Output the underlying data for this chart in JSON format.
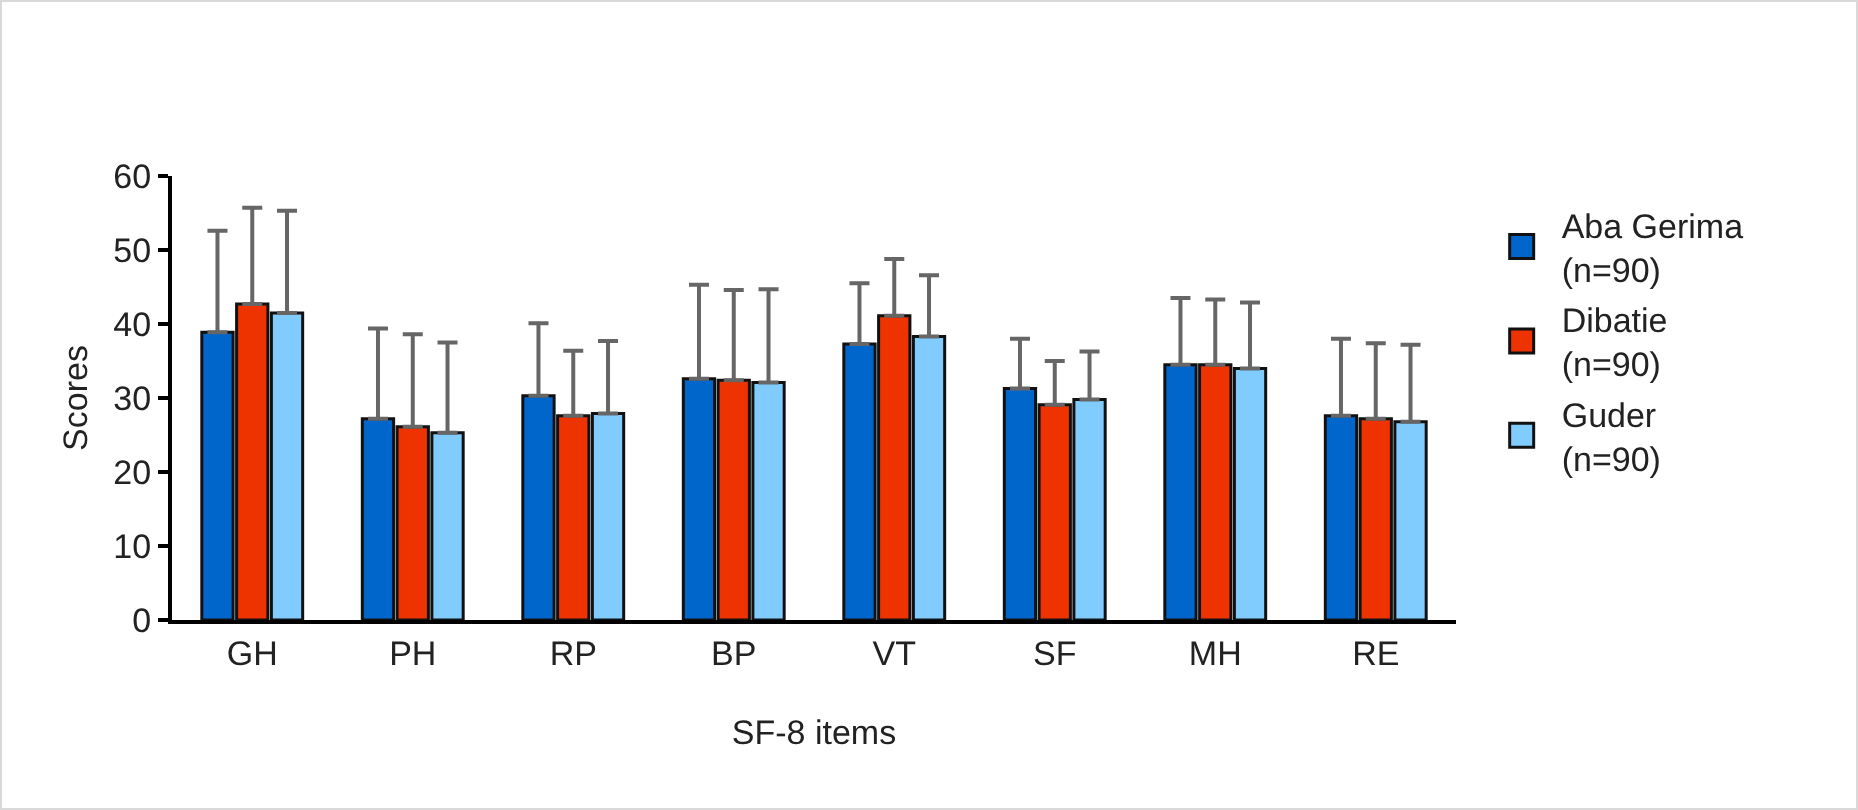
{
  "chart_data": {
    "type": "bar",
    "xlabel": "SF-8 items",
    "ylabel": "Scores",
    "categories": [
      "GH",
      "PH",
      "RP",
      "BP",
      "VT",
      "SF",
      "MH",
      "RE"
    ],
    "series": [
      {
        "name": "Aba Gerima (n=90)",
        "color": "#0066cc",
        "values": [
          38.9,
          27.2,
          30.3,
          32.6,
          37.3,
          31.3,
          34.5,
          27.6
        ],
        "errors": [
          [
            38.9,
            52.6
          ],
          [
            27.2,
            39.4
          ],
          [
            30.3,
            40.1
          ],
          [
            32.6,
            45.3
          ],
          [
            37.3,
            45.5
          ],
          [
            31.3,
            38.0
          ],
          [
            34.5,
            43.5
          ],
          [
            27.6,
            38.0
          ]
        ]
      },
      {
        "name": "Dibatie (n=90)",
        "color": "#ee3300",
        "values": [
          42.7,
          26.1,
          27.6,
          32.4,
          41.1,
          29.1,
          34.5,
          27.2
        ],
        "errors": [
          [
            42.7,
            55.7
          ],
          [
            26.1,
            38.6
          ],
          [
            27.6,
            36.4
          ],
          [
            32.4,
            44.6
          ],
          [
            41.1,
            48.8
          ],
          [
            29.1,
            35.0
          ],
          [
            34.5,
            43.3
          ],
          [
            27.2,
            37.4
          ]
        ]
      },
      {
        "name": "Guder (n=90)",
        "color": "#80ccff",
        "values": [
          41.5,
          25.3,
          27.9,
          32.1,
          38.3,
          29.8,
          34.0,
          26.8
        ],
        "errors": [
          [
            41.5,
            55.3
          ],
          [
            25.3,
            37.5
          ],
          [
            27.9,
            37.7
          ],
          [
            32.1,
            44.7
          ],
          [
            38.3,
            46.6
          ],
          [
            29.8,
            36.3
          ],
          [
            34.0,
            42.9
          ],
          [
            26.8,
            37.2
          ]
        ]
      }
    ],
    "ylim": [
      0,
      60
    ],
    "yticks": [
      0,
      10,
      20,
      30,
      40,
      50,
      60
    ],
    "grid": false,
    "legend": "right"
  }
}
